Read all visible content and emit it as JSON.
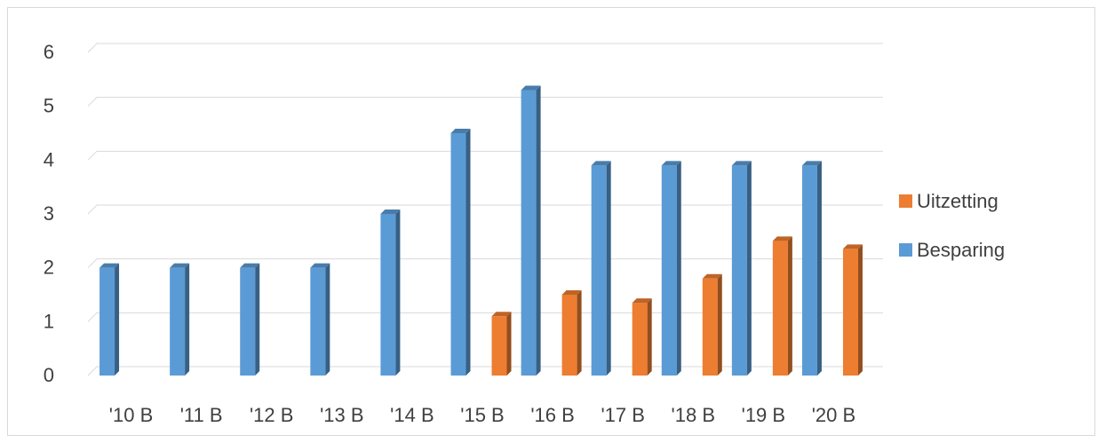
{
  "chart_data": {
    "type": "bar",
    "style": "3d-clustered-column",
    "title": "",
    "xlabel": "",
    "ylabel": "",
    "ylim": [
      0,
      6
    ],
    "yticks": [
      "0",
      "1",
      "2",
      "3",
      "4",
      "5",
      "6"
    ],
    "grid": true,
    "legend_position": "right",
    "categories": [
      "'10 B",
      "'11 B",
      "'12 B",
      "'13 B",
      "'14 B",
      "'15 B",
      "'16 B",
      "'17 B",
      "'18 B",
      "'19 B",
      "'20 B"
    ],
    "series": [
      {
        "name": "Besparing",
        "color": "#5B9BD5",
        "values": [
          2,
          2,
          2,
          2,
          3,
          4.5,
          5.3,
          3.9,
          3.9,
          3.9,
          3.9
        ]
      },
      {
        "name": "Uitzetting",
        "color": "#ED7D31",
        "values": [
          0,
          0,
          0,
          0,
          0,
          1.1,
          1.5,
          1.35,
          1.8,
          2.5,
          2.35
        ]
      }
    ],
    "legend_order": [
      "Uitzetting",
      "Besparing"
    ]
  }
}
